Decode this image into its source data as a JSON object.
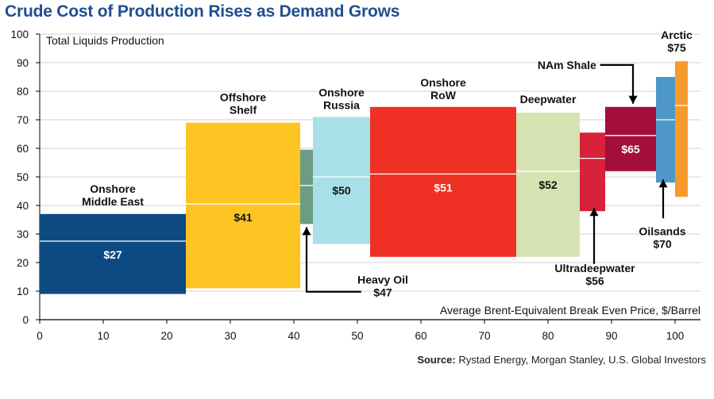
{
  "chart_data": {
    "type": "bar",
    "variant": "cost-curve",
    "title": "Crude Cost of Production Rises as Demand Grows",
    "ylabel": "Total Liquids Production",
    "xlabel": "Average Brent-Equivalent Break Even Price, $/Barrel",
    "xlim": [
      0,
      105
    ],
    "ylim": [
      0,
      100
    ],
    "xticks": [
      0,
      10,
      20,
      30,
      40,
      50,
      60,
      70,
      80,
      90,
      100
    ],
    "yticks": [
      0,
      10,
      20,
      30,
      40,
      50,
      60,
      70,
      80,
      90,
      100
    ],
    "grid": true,
    "segments": [
      {
        "name": "Onshore Middle East",
        "label_lines": [
          "Onshore",
          "Middle East"
        ],
        "value_label": "$27",
        "x_start": 0,
        "x_end": 23,
        "y_low": 9,
        "y_high": 37,
        "midline": 27.5,
        "color": "#0d4a82",
        "value_color": "#ffffff",
        "label_pos": "above"
      },
      {
        "name": "Offshore Shelf",
        "label_lines": [
          "Offshore",
          "Shelf"
        ],
        "value_label": "$41",
        "x_start": 23,
        "x_end": 41,
        "y_low": 11,
        "y_high": 69,
        "midline": 40.5,
        "color": "#fdc424",
        "value_color": "#111111",
        "label_pos": "above"
      },
      {
        "name": "Heavy Oil",
        "label_lines": [
          "Heavy Oil",
          "$47"
        ],
        "value_label": "",
        "x_start": 41,
        "x_end": 43,
        "y_low": 33.5,
        "y_high": 59.5,
        "midline": 47,
        "color": "#6b9c86",
        "value_color": "#111111",
        "label_pos": "callout-bottom-right"
      },
      {
        "name": "Onshore Russia",
        "label_lines": [
          "Onshore",
          "Russia"
        ],
        "value_label": "$50",
        "x_start": 43,
        "x_end": 52,
        "y_low": 26.5,
        "y_high": 71,
        "midline": 50,
        "color": "#a9dfe8",
        "value_color": "#111111",
        "label_pos": "above"
      },
      {
        "name": "Onshore RoW",
        "label_lines": [
          "Onshore",
          "RoW"
        ],
        "value_label": "$51",
        "x_start": 52,
        "x_end": 75,
        "y_low": 22,
        "y_high": 74.5,
        "midline": 51,
        "color": "#ee3124",
        "value_color": "#ffffff",
        "label_pos": "above"
      },
      {
        "name": "Deepwater",
        "label_lines": [
          "Deepwater"
        ],
        "value_label": "$52",
        "x_start": 75,
        "x_end": 85,
        "y_low": 22,
        "y_high": 72.5,
        "midline": 52,
        "color": "#d5e3b3",
        "value_color": "#111111",
        "label_pos": "above"
      },
      {
        "name": "Ultradeepwater",
        "label_lines": [
          "Ultradeepwater",
          "$56"
        ],
        "value_label": "",
        "x_start": 85,
        "x_end": 89,
        "y_low": 38,
        "y_high": 65.5,
        "midline": 56.5,
        "color": "#d8213a",
        "value_color": "#ffffff",
        "label_pos": "callout-below"
      },
      {
        "name": "NAm Shale",
        "label_lines": [
          "NAm Shale"
        ],
        "value_label": "$65",
        "x_start": 89,
        "x_end": 97,
        "y_low": 52,
        "y_high": 74.5,
        "midline": 64.5,
        "color": "#a50d3a",
        "value_color": "#ffffff",
        "label_pos": "callout-above"
      },
      {
        "name": "Oilsands",
        "label_lines": [
          "Oilsands",
          "$70"
        ],
        "value_label": "",
        "x_start": 97,
        "x_end": 100,
        "y_low": 48,
        "y_high": 85,
        "midline": 70,
        "color": "#4e98c7",
        "value_color": "#ffffff",
        "label_pos": "callout-below"
      },
      {
        "name": "Arctic",
        "label_lines": [
          "Arctic",
          "$75"
        ],
        "value_label": "",
        "x_start": 100,
        "x_end": 102,
        "y_low": 43,
        "y_high": 90.5,
        "midline": 75,
        "color": "#f79a2e",
        "value_color": "#ffffff",
        "label_pos": "above"
      }
    ]
  },
  "source": {
    "prefix": "Source:",
    "text": " Rystad Energy, Morgan Stanley, U.S. Global Investors"
  }
}
